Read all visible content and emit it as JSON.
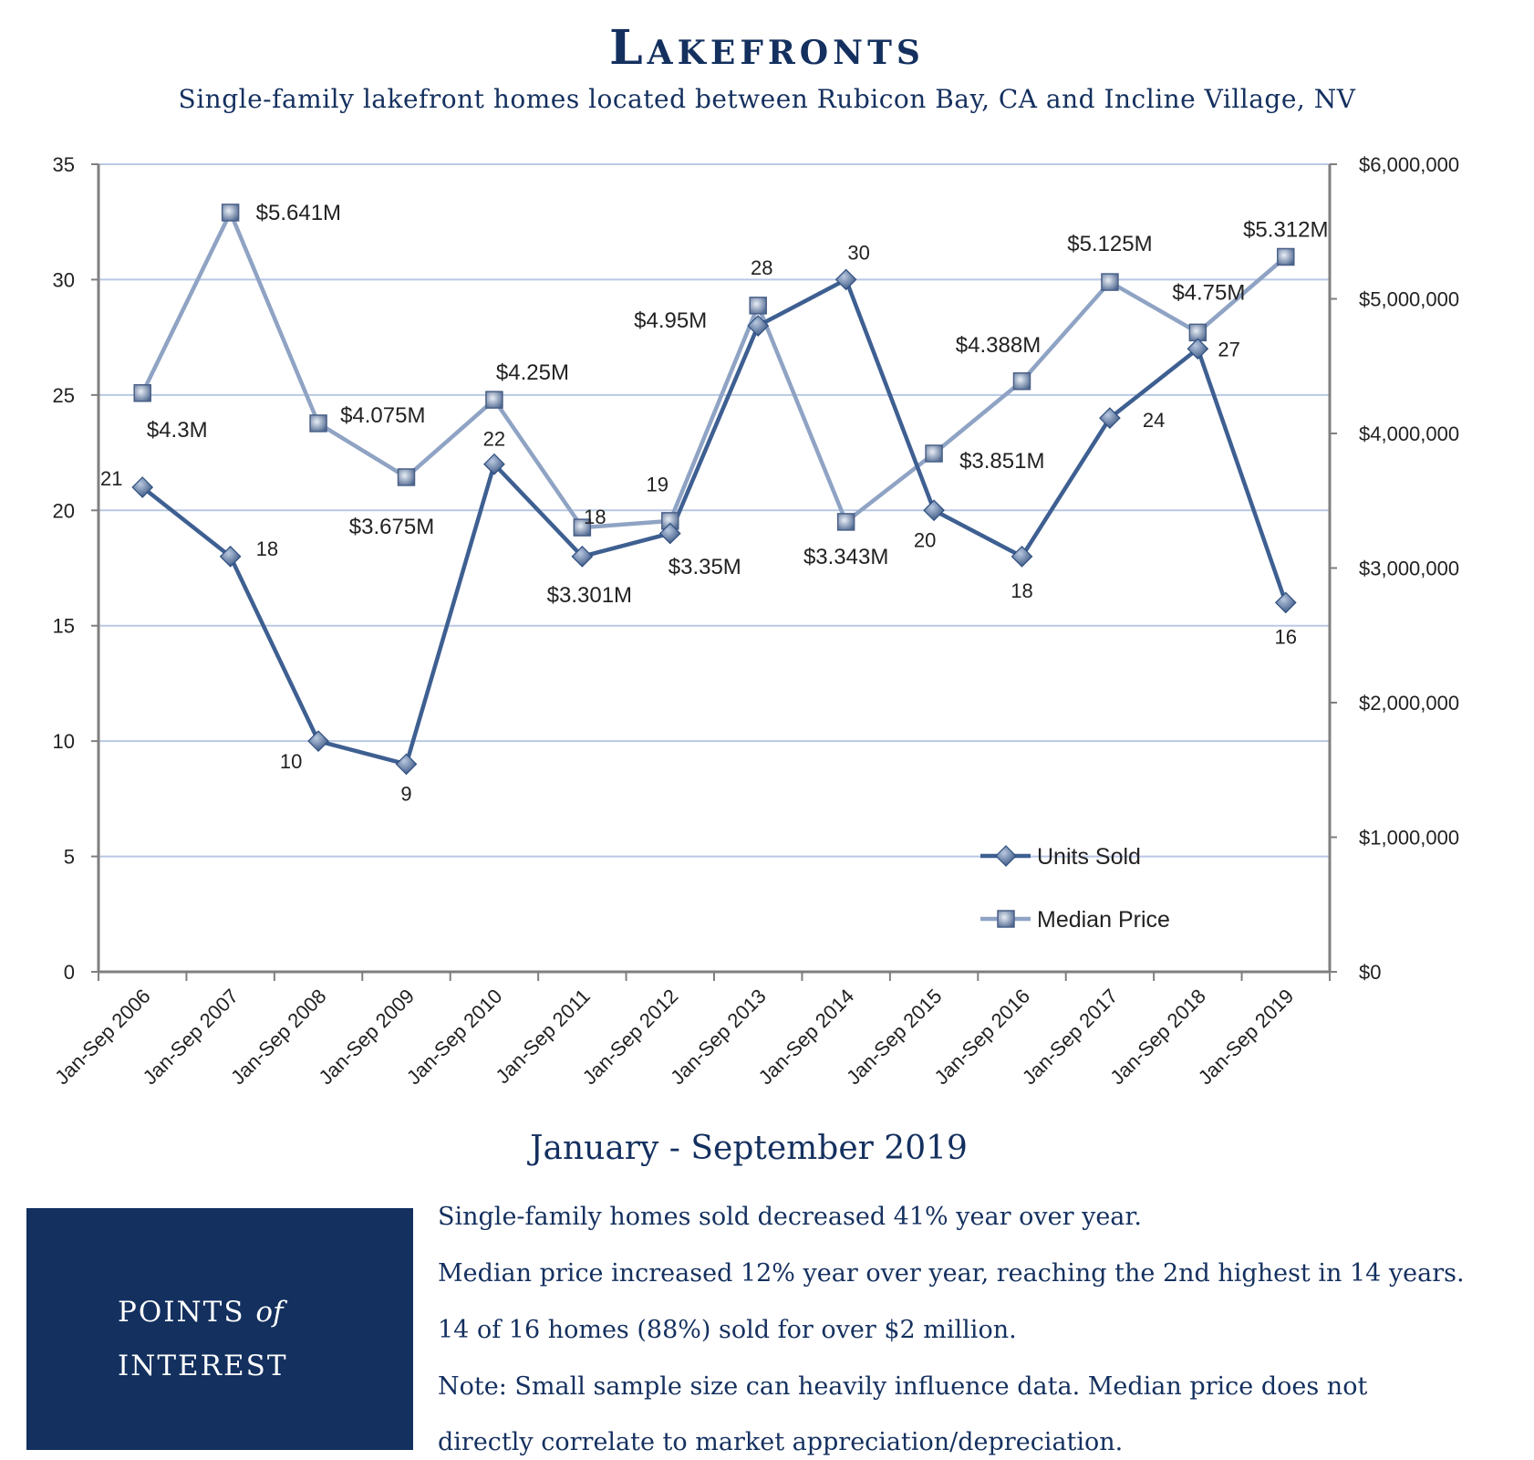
{
  "header": {
    "title": "Lakefronts",
    "subtitle": "Single-family lakefront homes located between Rubicon Bay, CA and Incline Village, NV"
  },
  "chart_data": {
    "type": "line",
    "categories": [
      "Jan-Sep 2006",
      "Jan-Sep 2007",
      "Jan-Sep 2008",
      "Jan-Sep 2009",
      "Jan-Sep 2010",
      "Jan-Sep 2011",
      "Jan-Sep 2012",
      "Jan-Sep 2013",
      "Jan-Sep 2014",
      "Jan-Sep 2015",
      "Jan-Sep 2016",
      "Jan-Sep 2017",
      "Jan-Sep 2018",
      "Jan-Sep 2019"
    ],
    "series": [
      {
        "name": "Units Sold",
        "axis": "left",
        "color": "#3e5f91",
        "values": [
          21,
          18,
          10,
          9,
          22,
          18,
          19,
          28,
          30,
          20,
          18,
          24,
          27,
          16
        ],
        "labels": [
          "21",
          "18",
          "10",
          "9",
          "22",
          "18",
          "19",
          "28",
          "30",
          "20",
          "18",
          "24",
          "27",
          "16"
        ]
      },
      {
        "name": "Median Price",
        "axis": "right",
        "color": "#8fa3c4",
        "values": [
          4300000,
          5641000,
          4075000,
          3675000,
          4250000,
          3301000,
          3350000,
          4950000,
          3343000,
          3851000,
          4388000,
          5125000,
          4750000,
          5312000
        ],
        "labels": [
          "$4.3M",
          "$5.641M",
          "$4.075M",
          "$3.675M",
          "$4.25M",
          "$3.301M",
          "$3.35M",
          "$4.95M",
          "$3.343M",
          "$3.851M",
          "$4.388M",
          "$5.125M",
          "$4.75M",
          "$5.312M"
        ]
      }
    ],
    "y_left": {
      "min": 0,
      "max": 35,
      "ticks": [
        0,
        5,
        10,
        15,
        20,
        25,
        30,
        35
      ],
      "tick_labels": [
        "0",
        "5",
        "10",
        "15",
        "20",
        "25",
        "30",
        "35"
      ]
    },
    "y_right": {
      "min": 0,
      "max": 6000000,
      "ticks": [
        0,
        1000000,
        2000000,
        3000000,
        4000000,
        5000000,
        6000000
      ],
      "tick_labels": [
        "$0",
        "$1,000,000",
        "$2,000,000",
        "$3,000,000",
        "$4,000,000",
        "$5,000,000",
        "$6,000,000"
      ]
    },
    "grid": true,
    "legend": "bottom-right",
    "gridline_color": "#b8c8e4",
    "axis_color": "#7f7f7f"
  },
  "summary": {
    "period_heading": "January - September 2019",
    "poi_line1_prefix": "POINTS",
    "poi_line1_italic": "of",
    "poi_line2": "INTEREST",
    "points": [
      "Single-family homes sold decreased 41% year over year.",
      "Median price increased 12% year over year, reaching the 2nd highest in 14 years.",
      "14 of 16 homes (88%) sold for over $2 million.",
      "Note: Small sample size can heavily influence data. Median price does not",
      "directly correlate to market appreciation/depreciation."
    ]
  }
}
